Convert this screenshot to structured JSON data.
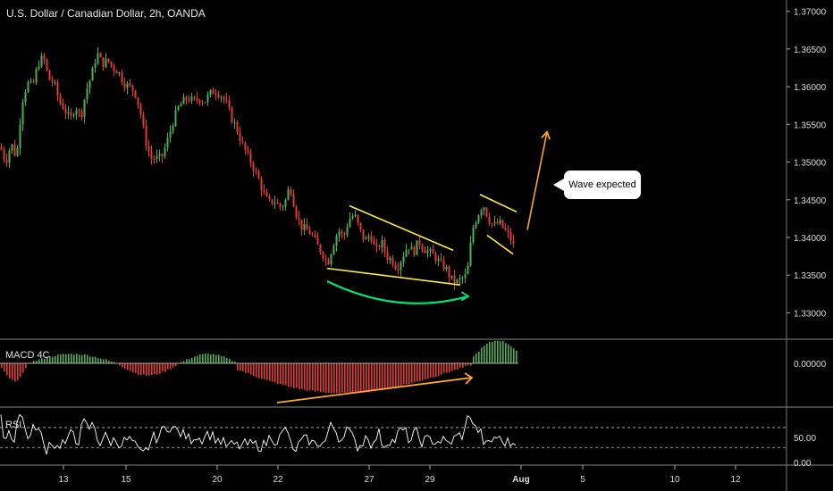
{
  "header": {
    "title": "U.S. Dollar / Canadian Dollar, 2h, OANDA"
  },
  "callout": {
    "text": "Wave expected"
  },
  "chart_data": [
    {
      "type": "candlestick",
      "title": "U.S. Dollar / Canadian Dollar, 2h, OANDA",
      "ylim": [
        1.3265,
        1.3715
      ],
      "y_ticks": [
        "1.37000",
        "1.36500",
        "1.36000",
        "1.35500",
        "1.35000",
        "1.34500",
        "1.34000",
        "1.33500",
        "1.33000"
      ],
      "x_ticks": [
        "13",
        "15",
        "20",
        "22",
        "27",
        "29",
        "Aug",
        "5",
        "10",
        "12"
      ],
      "up_color": "#4caf50",
      "down_color": "#e53935",
      "close_path": [
        [
          0,
          1.352
        ],
        [
          6,
          1.35
        ],
        [
          12,
          1.3525
        ],
        [
          18,
          1.3505
        ],
        [
          24,
          1.358
        ],
        [
          30,
          1.3605
        ],
        [
          36,
          1.36
        ],
        [
          42,
          1.363
        ],
        [
          48,
          1.364
        ],
        [
          54,
          1.361
        ],
        [
          60,
          1.3605
        ],
        [
          66,
          1.358
        ],
        [
          72,
          1.357
        ],
        [
          78,
          1.3555
        ],
        [
          84,
          1.3575
        ],
        [
          90,
          1.356
        ],
        [
          96,
          1.3595
        ],
        [
          102,
          1.3615
        ],
        [
          108,
          1.3645
        ],
        [
          114,
          1.363
        ],
        [
          120,
          1.3635
        ],
        [
          126,
          1.3625
        ],
        [
          132,
          1.362
        ],
        [
          138,
          1.3605
        ],
        [
          144,
          1.36
        ],
        [
          150,
          1.3595
        ],
        [
          156,
          1.357
        ],
        [
          162,
          1.353
        ],
        [
          168,
          1.3505
        ],
        [
          174,
          1.3505
        ],
        [
          180,
          1.3505
        ],
        [
          186,
          1.3525
        ],
        [
          192,
          1.355
        ],
        [
          198,
          1.357
        ],
        [
          204,
          1.358
        ],
        [
          210,
          1.3585
        ],
        [
          216,
          1.358
        ],
        [
          222,
          1.3585
        ],
        [
          228,
          1.358
        ],
        [
          234,
          1.359
        ],
        [
          240,
          1.3595
        ],
        [
          246,
          1.359
        ],
        [
          252,
          1.358
        ],
        [
          258,
          1.356
        ],
        [
          264,
          1.3545
        ],
        [
          270,
          1.3525
        ],
        [
          276,
          1.351
        ],
        [
          282,
          1.3495
        ],
        [
          288,
          1.348
        ],
        [
          294,
          1.346
        ],
        [
          300,
          1.3445
        ],
        [
          306,
          1.345
        ],
        [
          312,
          1.344
        ],
        [
          318,
          1.3445
        ],
        [
          324,
          1.347
        ],
        [
          330,
          1.3435
        ],
        [
          336,
          1.3415
        ],
        [
          342,
          1.341
        ],
        [
          348,
          1.3405
        ],
        [
          354,
          1.339
        ],
        [
          360,
          1.338
        ],
        [
          366,
          1.3365
        ],
        [
          372,
          1.339
        ],
        [
          378,
          1.341
        ],
        [
          384,
          1.34
        ],
        [
          390,
          1.3425
        ],
        [
          396,
          1.343
        ],
        [
          402,
          1.341
        ],
        [
          408,
          1.3395
        ],
        [
          414,
          1.3405
        ],
        [
          420,
          1.338
        ],
        [
          426,
          1.3395
        ],
        [
          432,
          1.3375
        ],
        [
          438,
          1.337
        ],
        [
          444,
          1.336
        ],
        [
          450,
          1.3375
        ],
        [
          456,
          1.339
        ],
        [
          462,
          1.338
        ],
        [
          468,
          1.3395
        ],
        [
          474,
          1.3385
        ],
        [
          480,
          1.338
        ],
        [
          486,
          1.3375
        ],
        [
          492,
          1.3365
        ],
        [
          498,
          1.336
        ],
        [
          504,
          1.3345
        ],
        [
          510,
          1.334
        ],
        [
          516,
          1.3345
        ],
        [
          522,
          1.335
        ],
        [
          528,
          1.341
        ],
        [
          534,
          1.343
        ],
        [
          540,
          1.3445
        ],
        [
          546,
          1.3425
        ],
        [
          552,
          1.3415
        ],
        [
          558,
          1.342
        ],
        [
          564,
          1.341
        ],
        [
          570,
          1.34
        ],
        [
          576,
          1.3385
        ]
      ],
      "annotations": [
        {
          "kind": "trendline",
          "color": "#ffeb3b",
          "from": [
            391,
            1.3442
          ],
          "to": [
            507,
            1.3383
          ]
        },
        {
          "kind": "trendline",
          "color": "#ffeb3b",
          "from": [
            366,
            1.3359
          ],
          "to": [
            515,
            1.3337
          ]
        },
        {
          "kind": "trendline",
          "color": "#ffeb3b",
          "from": [
            537,
            1.3457
          ],
          "to": [
            578,
            1.3434
          ]
        },
        {
          "kind": "trendline",
          "color": "#ffeb3b",
          "from": [
            545,
            1.3403
          ],
          "to": [
            574,
            1.3378
          ]
        },
        {
          "kind": "arrow",
          "color": "#00e676",
          "from": [
            366,
            1.3342
          ],
          "to": [
            524,
            1.3322
          ]
        },
        {
          "kind": "arrow",
          "color": "#ffa726",
          "from": [
            590,
            1.341
          ],
          "to": [
            612,
            1.354
          ]
        }
      ]
    },
    {
      "type": "bar",
      "title": "MACD 4C",
      "y_ticks": [
        "0.00000"
      ],
      "baseline_value": 0,
      "positive_color": "#4caf50",
      "negative_color": "#e53935",
      "arrow": {
        "color": "#ffa726",
        "from_x": 310,
        "to_x": 528
      }
    },
    {
      "type": "line",
      "title": "RSI",
      "ylim": [
        0,
        100
      ],
      "y_ticks": [
        "50.00",
        "0.00"
      ],
      "bands": [
        30,
        70
      ],
      "line_color": "#ffffff"
    }
  ]
}
